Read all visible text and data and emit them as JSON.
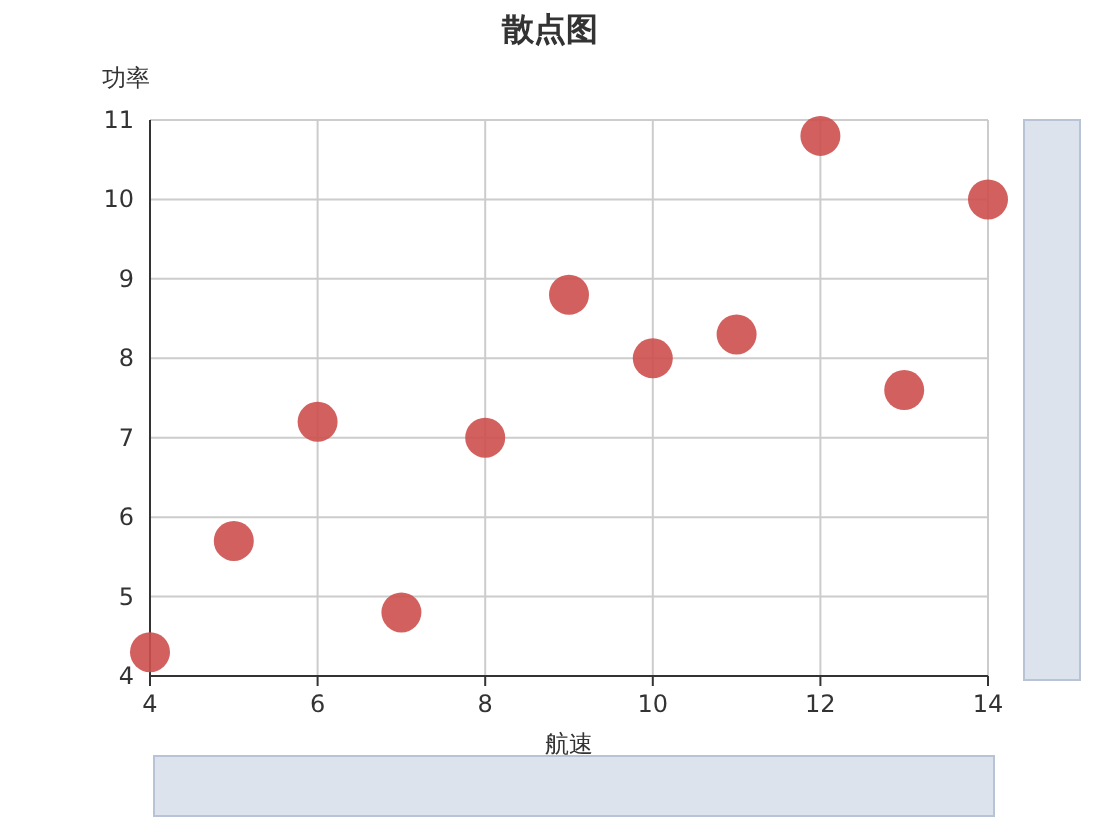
{
  "chart_data": {
    "type": "scatter",
    "title": "散点图",
    "xlabel": "航速",
    "ylabel": "功率",
    "x": [
      4,
      5,
      6,
      7,
      8,
      9,
      10,
      11,
      12,
      13,
      14
    ],
    "series": [
      {
        "color": "#cc4f4c",
        "values": [
          4.3,
          5.7,
          7.2,
          4.8,
          7.0,
          8.8,
          8.0,
          8.3,
          10.8,
          7.6,
          10.0
        ]
      }
    ],
    "xlim": [
      4,
      14
    ],
    "xticks": [
      4,
      6,
      8,
      10,
      12,
      14
    ],
    "ylim": [
      4,
      11
    ],
    "yticks": [
      4,
      5,
      6,
      7,
      8,
      9,
      10,
      11
    ],
    "grid": true,
    "marker": "circle"
  }
}
